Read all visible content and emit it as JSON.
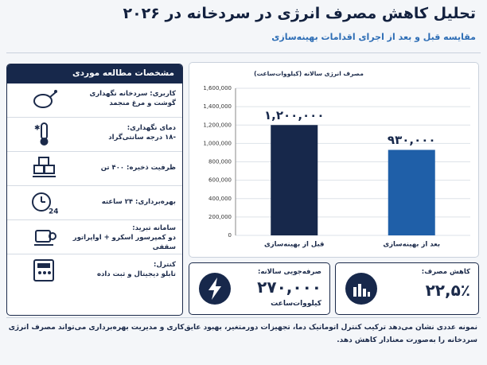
{
  "header": {
    "title": "تحلیل کاهش مصرف انرژی در سردخانه در ۲۰۲۶",
    "subtitle": "مقایسه قبل و بعد از اجرای اقدامات بهینه‌سازی"
  },
  "specs": {
    "title": "مشخصات مطالعه موردی",
    "items": [
      {
        "label": "کاربری:",
        "value": "سردخانه نگهداری گوشت و مرغ منجمد"
      },
      {
        "label": "دمای نگهداری:",
        "value": "-۱۸ درجه سانتی‌گراد"
      },
      {
        "label": "ظرفیت ذخیره:",
        "value": "۴۰۰ تن"
      },
      {
        "label": "بهره‌برداری:",
        "value": "۲۴ ساعته",
        "icon_text": "24"
      },
      {
        "label": "سامانه تبرید:",
        "value": "دو کمپرسور اسکرو + اواپراتور سقفی"
      },
      {
        "label": "کنترل:",
        "value": "تابلو دیجیتال و ثبت داده"
      }
    ]
  },
  "chart_data": {
    "type": "bar",
    "ylabel": "مصرف انرژی سالانه (کیلووات‌ساعت)",
    "categories": [
      "قبل از بهینه‌سازی",
      "بعد از بهینه‌سازی"
    ],
    "values": [
      1200000,
      930000
    ],
    "value_labels": [
      "۱,۲۰۰,۰۰۰",
      "۹۳۰,۰۰۰"
    ],
    "colors": [
      "#17284b",
      "#1f5fa8"
    ],
    "ylim": [
      0,
      1600000
    ],
    "yticks": [
      0,
      {
        "value": 200000,
        "label": "200,000"
      },
      {
        "value": 400000,
        "label": "400,000"
      },
      {
        "value": 600000,
        "label": "600,000"
      },
      {
        "value": 800000,
        "label": "800,000"
      },
      {
        "value": 1000000,
        "label": "1,000,000"
      },
      {
        "value": 1200000,
        "label": "1,200,000"
      },
      {
        "value": 1400000,
        "label": "1,400,000"
      },
      {
        "value": 1600000,
        "label": "1,600,000"
      }
    ],
    "grid": true
  },
  "cards": [
    {
      "label": "صرفه‌جویی سالانه:",
      "value": "۲۷۰,۰۰۰",
      "unit": "کیلووات‌ساعت"
    },
    {
      "label": "کاهش مصرف:",
      "value": "۲۲,۵٪"
    }
  ],
  "note": "نمونه عددی نشان می‌دهد ترکیب کنترل اتوماتیک دما، تجهیزات دورمتغیر، بهبود عایق‌کاری و مدیریت بهره‌برداری می‌تواند مصرف انرژی سردخانه را به‌صورت معنادار کاهش دهد."
}
